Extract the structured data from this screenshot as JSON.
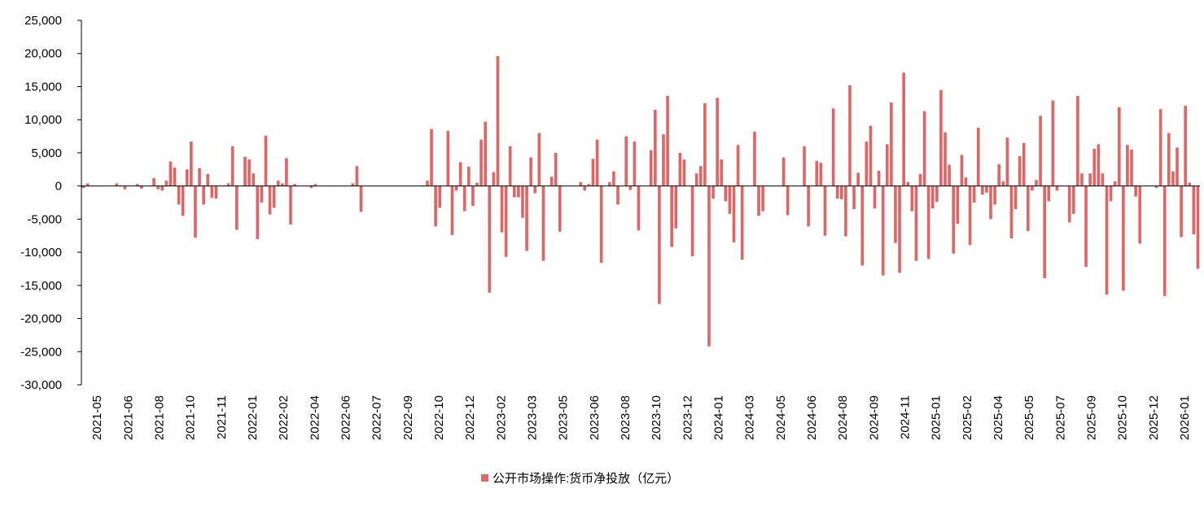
{
  "chart_data": {
    "type": "bar",
    "series": [
      {
        "name": "公开市场操作:货币净投放（亿元）",
        "color": "#E06666",
        "values": [
          -300,
          400,
          0,
          0,
          0,
          0,
          0,
          0,
          400,
          100,
          -500,
          0,
          0,
          300,
          -400,
          0,
          0,
          1200,
          -500,
          -700,
          800,
          3700,
          2800,
          -2800,
          -4500,
          2500,
          6700,
          -7800,
          2700,
          -2800,
          1800,
          -1800,
          -1900,
          0,
          100,
          400,
          6000,
          -6600,
          0,
          4400,
          4000,
          1900,
          -8000,
          -2500,
          7600,
          -4300,
          -3300,
          800,
          400,
          4200,
          -5800,
          300,
          0,
          0,
          0,
          -300,
          300,
          0,
          0,
          0,
          0,
          0,
          0,
          0,
          0,
          400,
          3000,
          -3900,
          0,
          0,
          0,
          0,
          0,
          0,
          0,
          0,
          0,
          0,
          0,
          0,
          0,
          0,
          100,
          800,
          8600,
          -6100,
          -3300,
          0,
          8300,
          -7400,
          -700,
          3600,
          -3800,
          2900,
          -3000,
          500,
          7000,
          9700,
          -16100,
          2100,
          19600,
          -7000,
          -10700,
          6000,
          -1700,
          -1700,
          -4800,
          -9800,
          4300,
          -1100,
          8000,
          -11300,
          0,
          1400,
          5000,
          -6900,
          0,
          0,
          0,
          0,
          600,
          -700,
          300,
          4100,
          7000,
          -11600,
          0,
          600,
          2200,
          -2800,
          0,
          7500,
          -600,
          6700,
          -6700,
          0,
          0,
          5400,
          11500,
          -17800,
          7800,
          13600,
          -9200,
          -6400,
          5000,
          4000,
          0,
          -10600,
          1900,
          3000,
          12500,
          -24200,
          -1900,
          13300,
          4000,
          -2300,
          -4200,
          -8500,
          6200,
          -11100,
          0,
          0,
          8200,
          -4500,
          -3800,
          0,
          0,
          0,
          0,
          4300,
          -4400,
          0,
          0,
          0,
          6000,
          -6100,
          0,
          3800,
          3500,
          -7500,
          0,
          11700,
          -1900,
          -2000,
          -7600,
          15200,
          -3500,
          2000,
          -12000,
          6700,
          9100,
          -3400,
          2300,
          -13500,
          6300,
          12600,
          -8600,
          -13100,
          17100,
          600,
          -3800,
          -11300,
          1800,
          11300,
          -11000,
          -3400,
          -2400,
          14500,
          8100,
          3200,
          -10200,
          -5700,
          4700,
          1300,
          -8900,
          -2500,
          8800,
          -1300,
          -1000,
          -5000,
          -2800,
          3300,
          700,
          7300,
          -7900,
          -3500,
          4500,
          6500,
          -6800,
          -700,
          900,
          10600,
          -13900,
          -2300,
          12900,
          -700,
          0,
          0,
          -5500,
          -4200,
          13600,
          1900,
          -12200,
          1900,
          5600,
          6300,
          1900,
          -16400,
          -2300,
          700,
          11900,
          -15800,
          6200,
          5500,
          -1600,
          -8700,
          0,
          0,
          0,
          -300,
          11600,
          -16600,
          8000,
          2200,
          5800,
          -7700,
          12100,
          500,
          -7300,
          -12500
        ]
      }
    ],
    "x_tick_labels": [
      "2021-05",
      "2021-06",
      "2021-08",
      "2021-10",
      "2021-11",
      "2022-01",
      "2022-02",
      "2022-04",
      "2022-06",
      "2022-07",
      "2022-09",
      "2022-10",
      "2022-12",
      "2023-02",
      "2023-03",
      "2023-05",
      "2023-06",
      "2023-08",
      "2023-10",
      "2023-12",
      "2024-01",
      "2024-03",
      "2024-05",
      "2024-06",
      "2024-08",
      "2024-09",
      "2024-11",
      "2025-01",
      "2025-02",
      "2025-04",
      "2025-05",
      "2025-07",
      "2025-09",
      "2025-10",
      "2025-12",
      "2026-01"
    ],
    "y_tick_labels": [
      "25,000",
      "20,000",
      "15,000",
      "10,000",
      "5,000",
      "0",
      "-5,000",
      "-10,000",
      "-15,000",
      "-20,000",
      "-25,000",
      "-30,000"
    ],
    "ylim": [
      -30000,
      25000
    ],
    "y_tick_step": 5000,
    "grid": false,
    "legend_position": "bottom"
  }
}
